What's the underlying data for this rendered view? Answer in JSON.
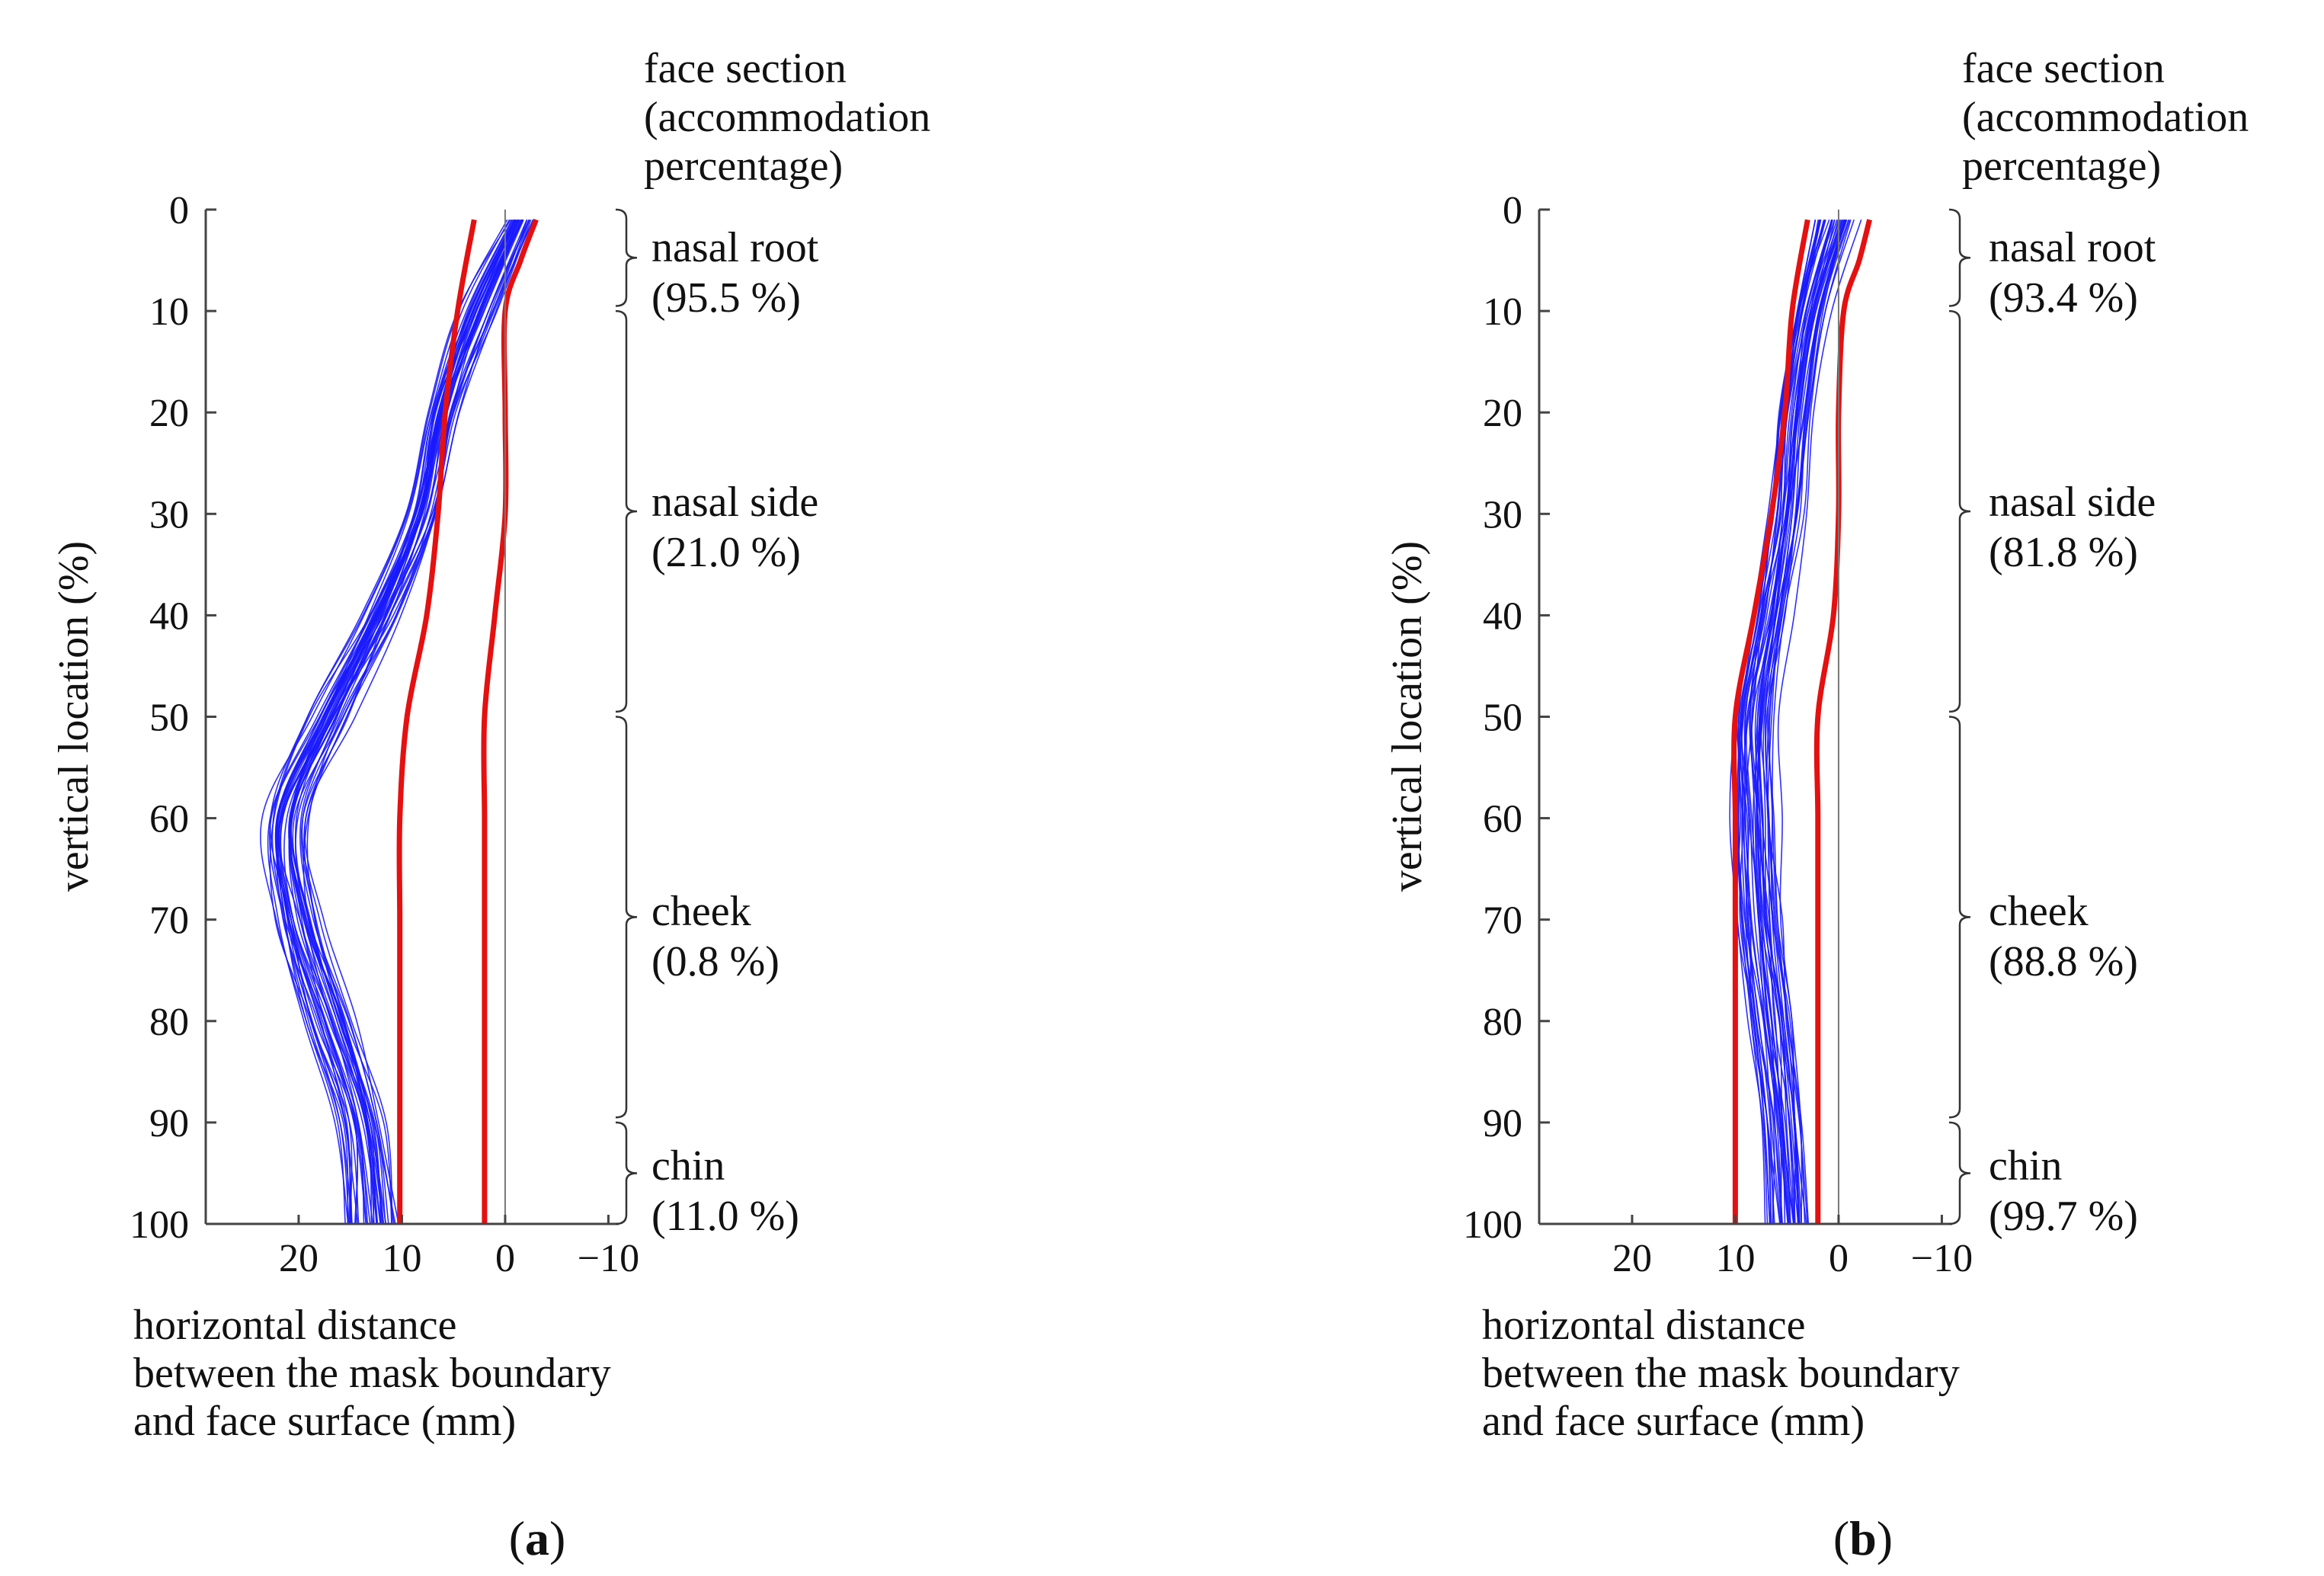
{
  "colors": {
    "sample_curves": "#1a1aff",
    "bounds": "#e51010",
    "axes": "#444444",
    "brackets": "#333333"
  },
  "chart_data": [
    {
      "panel": "a",
      "type": "line",
      "panel_label": {
        "open": "(",
        "letter": "a",
        "close": ")"
      },
      "ylabel": "vertical location (%)",
      "xlabel_lines": [
        "horizontal distance",
        "between the mask boundary",
        "and face surface (mm)"
      ],
      "x_ticks": [
        "20",
        "10",
        "0",
        "−10"
      ],
      "x_tick_values": [
        20,
        10,
        0,
        -10
      ],
      "y_ticks": [
        "0",
        "10",
        "20",
        "30",
        "40",
        "50",
        "60",
        "70",
        "80",
        "90",
        "100"
      ],
      "xlim": [
        29,
        -11
      ],
      "ylim": [
        0,
        100
      ],
      "section_header": [
        "face section",
        "(accommodation",
        "percentage)"
      ],
      "sections": [
        {
          "name": "nasal root",
          "percentage": "(95.5 %)",
          "range": [
            0,
            9.5
          ]
        },
        {
          "name": "nasal side",
          "percentage": "(21.0 %)",
          "range": [
            10,
            49.5
          ]
        },
        {
          "name": "cheek",
          "percentage": "(0.8 %)",
          "range": [
            50,
            89.5
          ]
        },
        {
          "name": "chin",
          "percentage": "(11.0 %)",
          "range": [
            90,
            100
          ]
        }
      ],
      "bounds": {
        "outer": {
          "y": [
            1,
            10,
            20,
            30,
            40,
            50,
            60,
            70,
            80,
            90,
            100
          ],
          "x": [
            3,
            4.6,
            5.8,
            6.5,
            7.6,
            9.5,
            10.2,
            10.2,
            10.2,
            10.2,
            10.2
          ]
        },
        "inner": {
          "y": [
            1,
            5,
            10,
            20,
            30,
            40,
            50,
            60,
            70,
            80,
            90,
            100
          ],
          "x": [
            -3,
            -1.5,
            0,
            0,
            0,
            1,
            2,
            2,
            2,
            2,
            2,
            2
          ]
        }
      },
      "samples": {
        "count": 40,
        "y": [
          1,
          10,
          20,
          30,
          40,
          50,
          60,
          70,
          80,
          90,
          100
        ],
        "mean_x": [
          -1.5,
          2.5,
          6,
          8,
          12,
          17,
          21,
          20,
          17,
          14,
          13
        ],
        "spread_x": [
          1.2,
          2,
          2,
          2,
          2.5,
          3,
          3,
          3,
          3,
          2.5,
          2.5
        ]
      }
    },
    {
      "panel": "b",
      "type": "line",
      "panel_label": {
        "open": "(",
        "letter": "b",
        "close": ")"
      },
      "ylabel": "vertical location (%)",
      "xlabel_lines": [
        "horizontal distance",
        "between the mask boundary",
        "and face surface (mm)"
      ],
      "x_ticks": [
        "20",
        "10",
        "0",
        "−10"
      ],
      "x_tick_values": [
        20,
        10,
        0,
        -10
      ],
      "y_ticks": [
        "0",
        "10",
        "20",
        "30",
        "40",
        "50",
        "60",
        "70",
        "80",
        "90",
        "100"
      ],
      "xlim": [
        29,
        -11
      ],
      "ylim": [
        0,
        100
      ],
      "section_header": [
        "face section",
        "(accommodation",
        "percentage)"
      ],
      "sections": [
        {
          "name": "nasal root",
          "percentage": "(93.4 %)",
          "range": [
            0,
            9.5
          ]
        },
        {
          "name": "nasal side",
          "percentage": "(81.8 %)",
          "range": [
            10,
            49.5
          ]
        },
        {
          "name": "cheek",
          "percentage": "(88.8 %)",
          "range": [
            50,
            89.5
          ]
        },
        {
          "name": "chin",
          "percentage": "(99.7 %)",
          "range": [
            90,
            100
          ]
        }
      ],
      "bounds": {
        "outer": {
          "y": [
            1,
            10,
            20,
            30,
            40,
            50,
            60,
            70,
            80,
            90,
            100
          ],
          "x": [
            3,
            4.5,
            5.2,
            6.5,
            8.2,
            10,
            10,
            10,
            10,
            10,
            10
          ]
        },
        "inner": {
          "y": [
            1,
            5,
            10,
            20,
            30,
            40,
            50,
            60,
            70,
            80,
            90,
            100
          ],
          "x": [
            -3,
            -2,
            -0.5,
            0,
            0,
            0.5,
            2,
            2,
            2,
            2,
            2,
            2
          ]
        }
      },
      "samples": {
        "count": 40,
        "y": [
          1,
          10,
          20,
          30,
          40,
          50,
          60,
          70,
          80,
          90,
          100
        ],
        "mean_x": [
          0,
          2.5,
          4,
          5,
          6.5,
          8,
          8,
          7.5,
          6.5,
          5.5,
          5
        ],
        "spread_x": [
          2,
          1.8,
          2,
          2,
          2.2,
          2.5,
          2.5,
          2.5,
          2.5,
          2,
          2
        ]
      }
    }
  ]
}
